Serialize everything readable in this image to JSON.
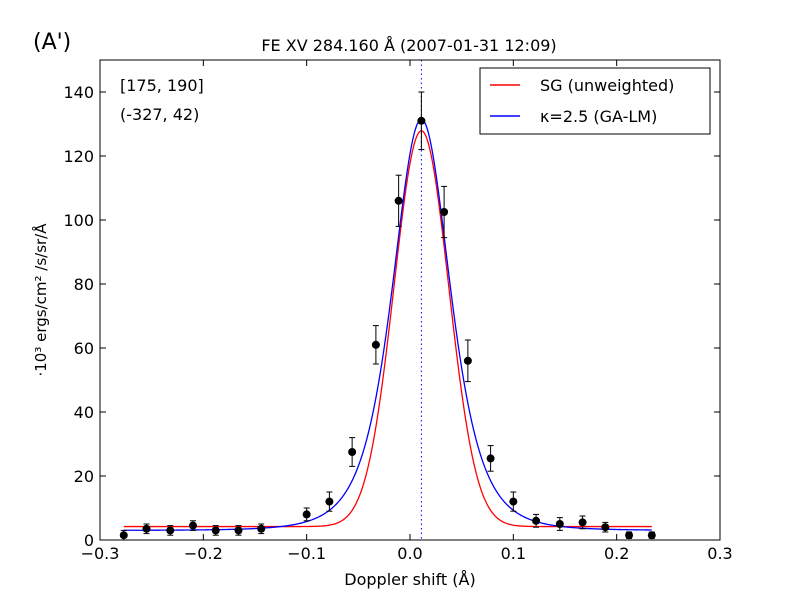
{
  "panel_label": "(A')",
  "chart_data": {
    "type": "scatter",
    "title": "FE XV 284.160 Å  (2007-01-31 12:09)",
    "xlabel": "Doppler shift (Å)",
    "ylabel": "·10³  ergs/cm² /s/sr/Å",
    "xlim": [
      -0.3,
      0.3
    ],
    "ylim": [
      0,
      150
    ],
    "xticks": [
      -0.3,
      -0.2,
      -0.1,
      0.0,
      0.1,
      0.2,
      0.3
    ],
    "xtick_labels": [
      "−0.3",
      "−0.2",
      "−0.1",
      "0.0",
      "0.1",
      "0.2",
      "0.3"
    ],
    "yticks": [
      0,
      20,
      40,
      60,
      80,
      100,
      120,
      140
    ],
    "ytick_labels": [
      "0",
      "20",
      "40",
      "60",
      "80",
      "100",
      "120",
      "140"
    ],
    "grid": false,
    "legend_position": "top-right",
    "annotations": [
      "[175, 190]",
      "(-327, 42)"
    ],
    "line_center": 0.011,
    "observed": {
      "x": [
        -0.277,
        -0.255,
        -0.232,
        -0.21,
        -0.188,
        -0.166,
        -0.144,
        -0.1,
        -0.078,
        -0.056,
        -0.033,
        -0.011,
        0.011,
        0.033,
        0.056,
        0.078,
        0.1,
        0.122,
        0.145,
        0.167,
        0.189,
        0.212,
        0.234
      ],
      "y": [
        1.5,
        3.5,
        3,
        4.5,
        3,
        3,
        3.5,
        8,
        12,
        27.5,
        61,
        106,
        131,
        102.5,
        56,
        25.5,
        12,
        6,
        5,
        5.5,
        4,
        1.5,
        1.5
      ],
      "err": [
        1.5,
        1.5,
        1.5,
        1.5,
        1.5,
        1.5,
        1.5,
        2,
        3,
        4.5,
        6,
        8,
        9,
        8,
        6.5,
        4,
        3,
        2,
        2,
        2,
        1.5,
        1,
        1
      ]
    },
    "series": [
      {
        "name": "SG (unweighted)",
        "color": "#ff0000",
        "model": "gaussian",
        "background": 4.2,
        "amplitude": 123.7,
        "center": 0.011,
        "sigma": 0.0265,
        "x_range": [
          -0.277,
          0.234
        ]
      },
      {
        "name": "κ=2.5 (GA-LM)",
        "color": "#0000ff",
        "model": "kappa",
        "kappa": 2.5,
        "background": 3.0,
        "amplitude": 128.5,
        "center": 0.011,
        "width": 0.026,
        "x_range": [
          -0.277,
          0.234
        ]
      }
    ]
  }
}
